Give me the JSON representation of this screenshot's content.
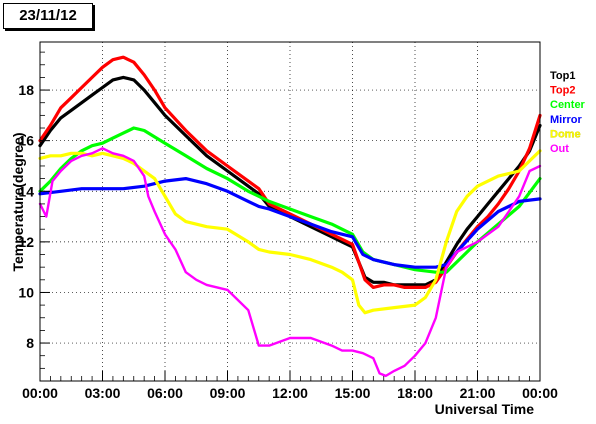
{
  "chart_data": {
    "type": "line",
    "title": "23/11/12",
    "xlabel": "Universal Time",
    "ylabel": "Temperature(degree)",
    "xlim": [
      0,
      24
    ],
    "ylim": [
      6.5,
      19.9
    ],
    "grid": true,
    "legend_position": "right",
    "x_ticks": [
      0,
      3,
      6,
      9,
      12,
      15,
      18,
      21,
      24
    ],
    "x_tick_labels": [
      "00:00",
      "03:00",
      "06:00",
      "09:00",
      "12:00",
      "15:00",
      "18:00",
      "21:00",
      "00:00"
    ],
    "y_ticks": [
      8,
      10,
      12,
      14,
      16,
      18
    ],
    "y_tick_labels": [
      "8",
      "10",
      "12",
      "14",
      "16",
      "18"
    ],
    "series": [
      {
        "name": "Top1",
        "color": "#000000",
        "x": [
          0,
          0.5,
          1,
          1.5,
          2,
          2.5,
          3,
          3.5,
          4,
          4.5,
          5,
          5.5,
          6,
          7,
          8,
          9,
          10,
          10.5,
          11,
          12,
          13,
          14,
          14.5,
          15,
          15.3,
          15.6,
          16,
          16.5,
          17,
          17.5,
          18,
          18.5,
          19,
          19.5,
          20,
          20.5,
          21,
          21.5,
          22,
          22.5,
          23,
          23.5,
          24
        ],
        "y": [
          15.8,
          16.4,
          16.9,
          17.2,
          17.5,
          17.8,
          18.1,
          18.4,
          18.5,
          18.4,
          18.0,
          17.5,
          17.0,
          16.2,
          15.4,
          14.8,
          14.2,
          13.9,
          13.4,
          13.0,
          12.6,
          12.2,
          12.0,
          11.8,
          11.2,
          10.6,
          10.4,
          10.4,
          10.3,
          10.3,
          10.3,
          10.3,
          10.5,
          11.2,
          11.9,
          12.5,
          13.0,
          13.5,
          14.0,
          14.5,
          15.0,
          15.6,
          16.6
        ]
      },
      {
        "name": "Top2",
        "color": "#ff0000",
        "x": [
          0,
          0.5,
          1,
          1.5,
          2,
          2.5,
          3,
          3.5,
          4,
          4.5,
          5,
          5.5,
          6,
          7,
          8,
          9,
          10,
          10.5,
          11,
          12,
          13,
          14,
          14.5,
          15,
          15.3,
          15.6,
          16,
          16.5,
          17,
          17.5,
          18,
          18.5,
          19,
          19.5,
          20,
          20.5,
          21,
          21.5,
          22,
          22.5,
          23,
          23.5,
          24
        ],
        "y": [
          16.0,
          16.6,
          17.3,
          17.7,
          18.1,
          18.5,
          18.9,
          19.2,
          19.3,
          19.1,
          18.6,
          18.0,
          17.3,
          16.4,
          15.6,
          15.0,
          14.4,
          14.1,
          13.5,
          13.1,
          12.7,
          12.3,
          12.1,
          11.9,
          11.2,
          10.5,
          10.2,
          10.3,
          10.3,
          10.2,
          10.2,
          10.2,
          10.4,
          11.0,
          11.6,
          12.1,
          12.6,
          13.0,
          13.5,
          14.1,
          14.8,
          15.7,
          17.0
        ]
      },
      {
        "name": "Center",
        "color": "#00ff00",
        "x": [
          0,
          0.5,
          1,
          1.5,
          2,
          2.5,
          3,
          3.5,
          4,
          4.5,
          5,
          6,
          7,
          8,
          9,
          10,
          10.5,
          11,
          12,
          13,
          14,
          15,
          15.5,
          16,
          17,
          18,
          19,
          19.5,
          20,
          21,
          22,
          23,
          24
        ],
        "y": [
          14.0,
          14.4,
          14.9,
          15.3,
          15.6,
          15.8,
          15.9,
          16.1,
          16.3,
          16.5,
          16.4,
          15.9,
          15.4,
          14.9,
          14.5,
          14.0,
          13.8,
          13.6,
          13.3,
          13.0,
          12.7,
          12.3,
          11.6,
          11.3,
          11.1,
          10.9,
          10.8,
          10.8,
          11.2,
          12.0,
          12.7,
          13.4,
          14.5
        ]
      },
      {
        "name": "Mirror",
        "color": "#0000ff",
        "x": [
          0,
          1,
          2,
          3,
          4,
          5,
          6,
          7,
          8,
          9,
          10,
          10.5,
          11,
          12,
          13,
          14,
          15,
          15.5,
          16,
          17,
          18,
          19,
          19.5,
          20,
          21,
          22,
          23,
          24
        ],
        "y": [
          13.9,
          14.0,
          14.1,
          14.1,
          14.1,
          14.2,
          14.4,
          14.5,
          14.3,
          14.0,
          13.6,
          13.4,
          13.3,
          13.0,
          12.7,
          12.4,
          12.2,
          11.5,
          11.3,
          11.1,
          11.0,
          11.0,
          11.1,
          11.6,
          12.5,
          13.2,
          13.6,
          13.7
        ]
      },
      {
        "name": "Dome",
        "color": "#ffff00",
        "x": [
          0,
          0.5,
          1,
          1.5,
          2,
          2.5,
          3,
          3.5,
          4,
          4.5,
          5,
          5.5,
          6,
          6.5,
          7,
          8,
          9,
          10,
          10.5,
          11,
          12,
          13,
          14,
          14.5,
          15,
          15.3,
          15.6,
          16,
          17,
          18,
          18.5,
          19,
          19.5,
          20,
          20.5,
          21,
          22,
          23,
          23.5,
          24
        ],
        "y": [
          15.3,
          15.4,
          15.4,
          15.5,
          15.5,
          15.4,
          15.5,
          15.4,
          15.3,
          15.1,
          14.8,
          14.5,
          13.8,
          13.1,
          12.8,
          12.6,
          12.5,
          12.0,
          11.7,
          11.6,
          11.5,
          11.3,
          11.0,
          10.8,
          10.5,
          9.5,
          9.2,
          9.3,
          9.4,
          9.5,
          9.8,
          10.5,
          12.0,
          13.2,
          13.8,
          14.2,
          14.6,
          14.8,
          15.2,
          15.6
        ]
      },
      {
        "name": "Out",
        "color": "#ff00ff",
        "x": [
          0,
          0.3,
          0.6,
          1,
          1.5,
          2,
          2.5,
          3,
          3.5,
          4,
          4.5,
          5,
          5.2,
          5.5,
          6,
          6.5,
          7,
          7.5,
          8,
          9,
          10,
          10.5,
          11,
          12,
          13,
          14,
          14.5,
          15,
          15.5,
          16,
          16.3,
          16.6,
          17,
          17.5,
          18,
          18.5,
          19,
          19.5,
          20,
          20.5,
          21,
          21.5,
          22,
          22.5,
          23,
          23.5,
          24
        ],
        "y": [
          13.5,
          13.0,
          14.4,
          14.8,
          15.2,
          15.4,
          15.5,
          15.7,
          15.5,
          15.4,
          15.2,
          14.6,
          13.8,
          13.2,
          12.3,
          11.7,
          10.8,
          10.5,
          10.3,
          10.1,
          9.3,
          7.9,
          7.9,
          8.2,
          8.2,
          7.9,
          7.7,
          7.7,
          7.6,
          7.4,
          6.8,
          6.7,
          6.9,
          7.1,
          7.5,
          8.0,
          9.0,
          11.0,
          11.6,
          11.8,
          12.0,
          12.3,
          12.6,
          13.2,
          13.8,
          14.8,
          15.0
        ]
      }
    ]
  }
}
